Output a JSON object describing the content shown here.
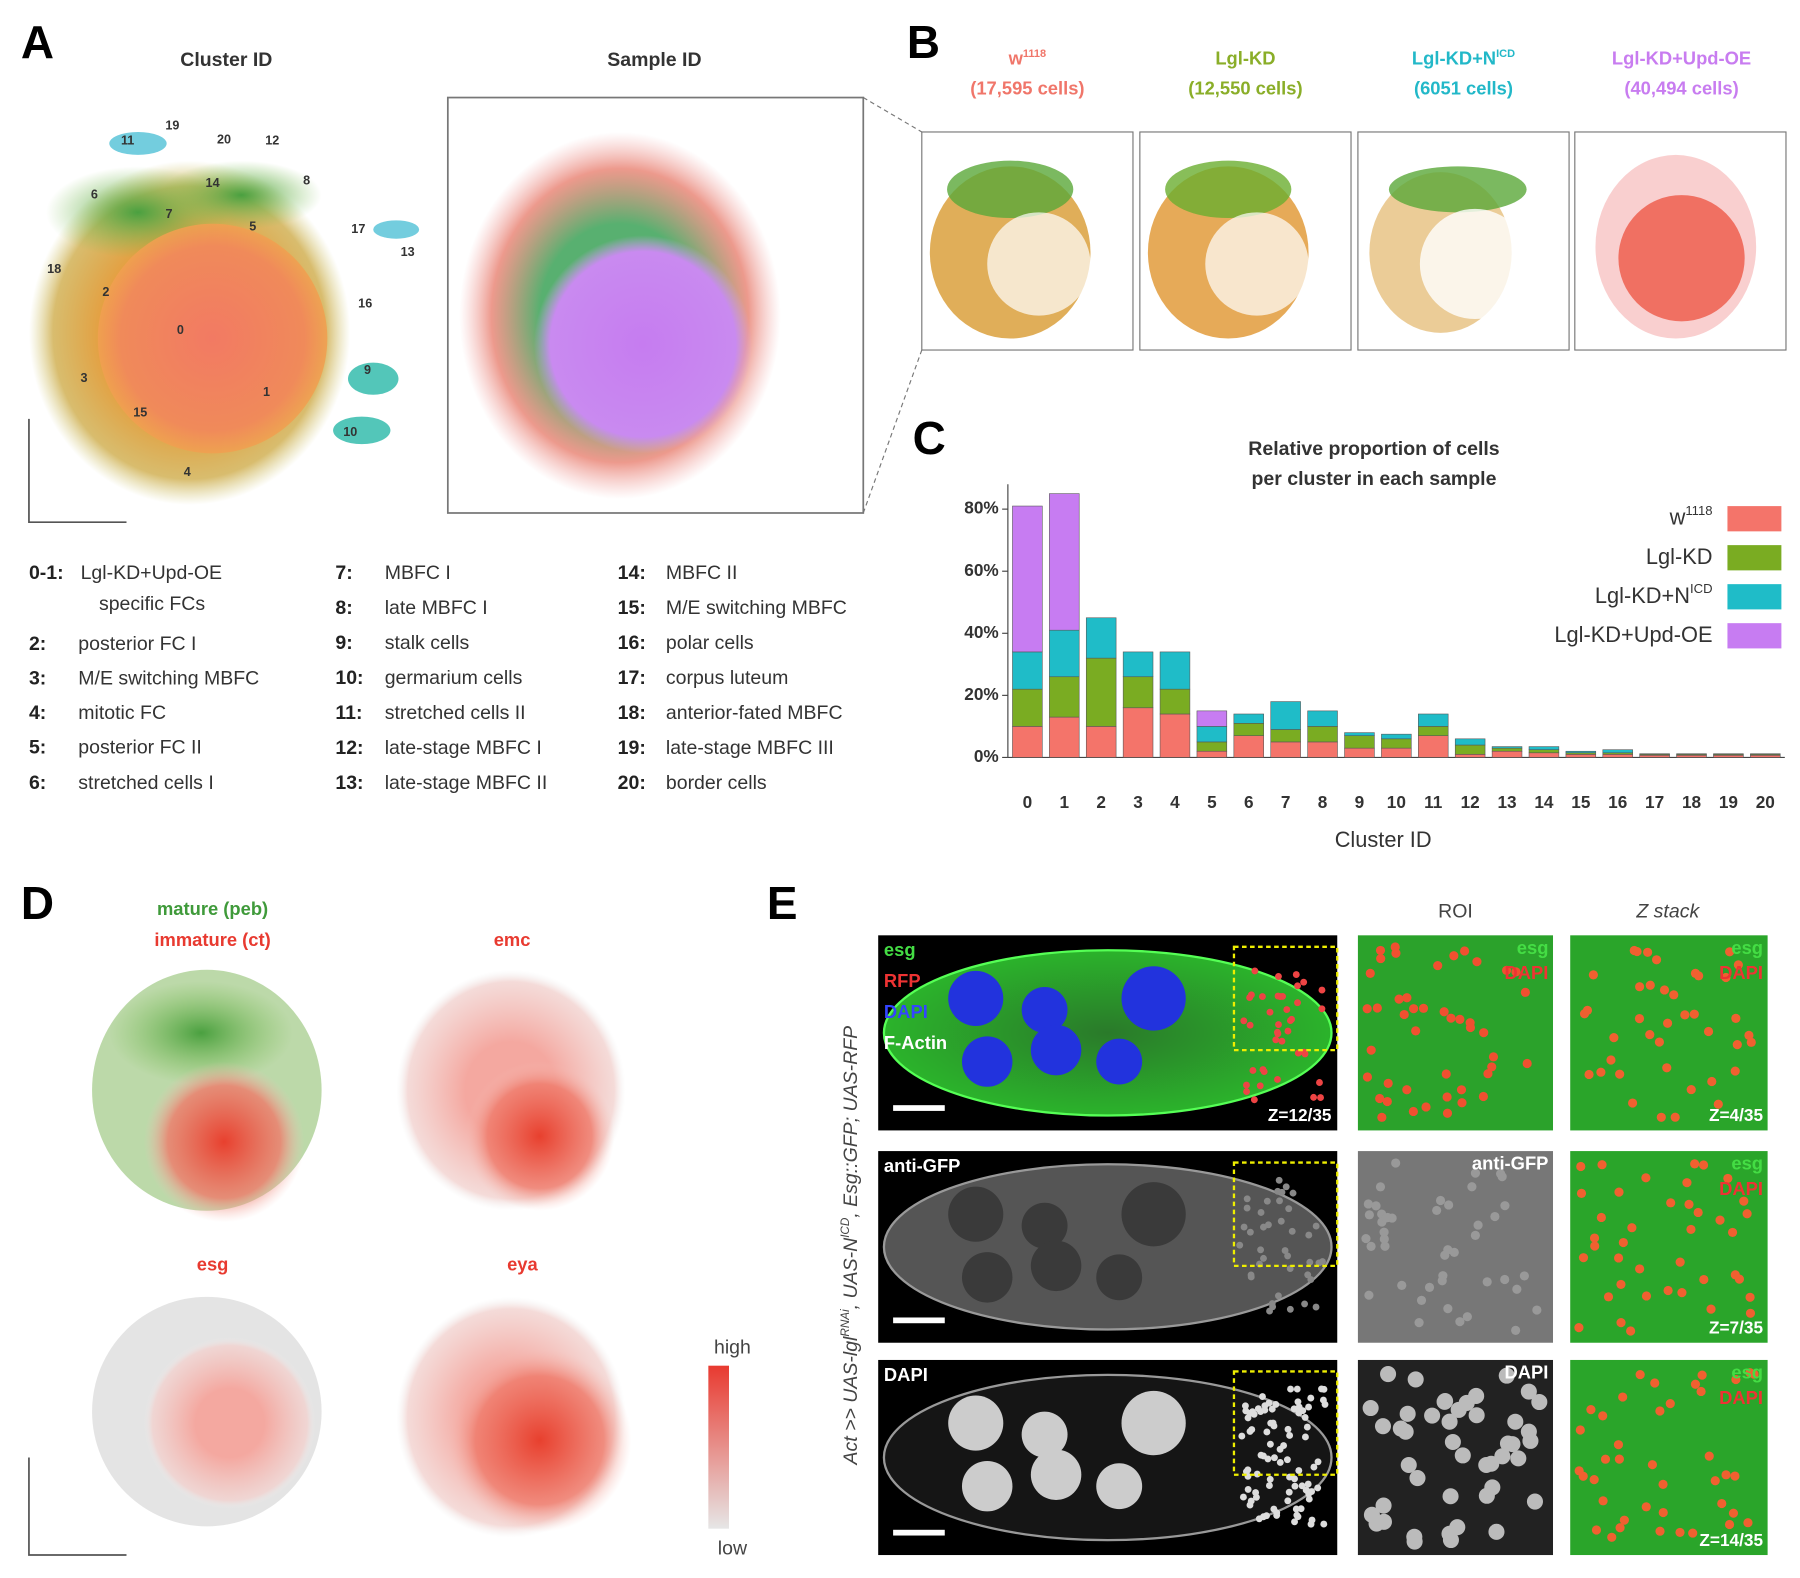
{
  "panel_a": {
    "label": "A",
    "titles": [
      "Cluster ID",
      "Sample ID"
    ],
    "umap_labels": [
      "19",
      "11",
      "20",
      "12",
      "6",
      "14",
      "8",
      "7",
      "5",
      "17",
      "13",
      "18",
      "2",
      "16",
      "0",
      "9",
      "3",
      "1",
      "15",
      "10",
      "4"
    ],
    "legend": [
      {
        "key": "0-1:",
        "lines": [
          "Lgl-KD+Upd-OE",
          "specific FCs"
        ]
      },
      {
        "key": "2:",
        "lines": [
          "posterior FC I"
        ]
      },
      {
        "key": "3:",
        "lines": [
          "M/E switching MBFC"
        ]
      },
      {
        "key": "4:",
        "lines": [
          "mitotic FC"
        ]
      },
      {
        "key": "5:",
        "lines": [
          "posterior FC II"
        ]
      },
      {
        "key": "6:",
        "lines": [
          "stretched cells I"
        ]
      },
      {
        "key": "7:",
        "lines": [
          "MBFC I"
        ]
      },
      {
        "key": "8:",
        "lines": [
          "late MBFC I"
        ]
      },
      {
        "key": "9:",
        "lines": [
          "stalk cells"
        ]
      },
      {
        "key": "10:",
        "lines": [
          "germarium cells"
        ]
      },
      {
        "key": "11:",
        "lines": [
          "stretched cells II"
        ]
      },
      {
        "key": "12:",
        "lines": [
          "late-stage MBFC I"
        ]
      },
      {
        "key": "13:",
        "lines": [
          "late-stage MBFC II"
        ]
      },
      {
        "key": "14:",
        "lines": [
          "MBFC II"
        ]
      },
      {
        "key": "15:",
        "lines": [
          "M/E switching MBFC"
        ]
      },
      {
        "key": "16:",
        "lines": [
          "polar cells"
        ]
      },
      {
        "key": "17:",
        "lines": [
          "corpus luteum"
        ]
      },
      {
        "key": "18:",
        "lines": [
          "anterior-fated MBFC"
        ]
      },
      {
        "key": "19:",
        "lines": [
          "late-stage MBFC III"
        ]
      },
      {
        "key": "20:",
        "lines": [
          "border cells"
        ]
      }
    ]
  },
  "panel_b": {
    "label": "B",
    "samples": [
      {
        "name": "w",
        "sup": "1118",
        "cells": "(17,595 cells)",
        "color": "#f0766a"
      },
      {
        "name": "Lgl-KD",
        "cells": "(12,550 cells)",
        "color": "#8aae28"
      },
      {
        "name": "Lgl-KD+N",
        "sup": "ICD",
        "cells": "(6051 cells)",
        "color": "#22b8c8"
      },
      {
        "name": "Lgl-KD+Upd-OE",
        "cells": "(40,494 cells)",
        "color": "#c87cf0"
      }
    ]
  },
  "chart_data": {
    "type": "bar",
    "stacked": true,
    "label": "C",
    "title": [
      "Relative proportion of cells",
      "per cluster in each sample"
    ],
    "x_label": "Cluster ID",
    "categories": [
      "0",
      "1",
      "2",
      "3",
      "4",
      "5",
      "6",
      "7",
      "8",
      "9",
      "10",
      "11",
      "12",
      "13",
      "14",
      "15",
      "16",
      "17",
      "18",
      "19",
      "20"
    ],
    "series": [
      {
        "name": "w",
        "sup": "1118",
        "color": "#f4746a",
        "values": [
          10,
          13,
          10,
          16,
          14,
          2,
          7,
          5,
          5,
          3,
          3,
          7,
          1,
          2,
          1.5,
          1,
          1,
          0.7,
          0.7,
          0.7,
          0.7
        ]
      },
      {
        "name": "Lgl-KD",
        "color": "#7aac22",
        "values": [
          12,
          13,
          22,
          10,
          8,
          3,
          4,
          4,
          5,
          4,
          3,
          3,
          3,
          1,
          1,
          0.5,
          0.5,
          0.3,
          0.3,
          0.3,
          0.3
        ]
      },
      {
        "name": "Lgl-KD+N",
        "sup": "ICD",
        "color": "#1fbcc8",
        "values": [
          12,
          15,
          13,
          8,
          12,
          5,
          3,
          9,
          5,
          1,
          1.5,
          4,
          2,
          0.5,
          1,
          0.5,
          1,
          0.2,
          0.2,
          0.2,
          0.2
        ]
      },
      {
        "name": "Lgl-KD+Upd-OE",
        "color": "#c77cf2",
        "values": [
          47,
          44,
          0,
          0,
          0,
          5,
          0,
          0,
          0,
          0,
          0,
          0,
          0,
          0,
          0,
          0,
          0,
          0,
          0,
          0,
          0
        ]
      }
    ],
    "ylim": [
      0,
      88
    ],
    "yticks": [
      {
        "value": 0,
        "label": "0%"
      },
      {
        "value": 20,
        "label": "20%"
      },
      {
        "value": 40,
        "label": "40%"
      },
      {
        "value": 60,
        "label": "60%"
      },
      {
        "value": 80,
        "label": "80%"
      }
    ],
    "legend": "upper right"
  },
  "panel_d": {
    "label": "D",
    "titles": [
      {
        "text": "mature (peb)",
        "color": "#3f9a3a"
      },
      {
        "text": "immature (ct)",
        "color": "#e83a30"
      },
      {
        "text": "emc",
        "color": "#e83a30"
      },
      {
        "text": "esg",
        "color": "#e83a30"
      },
      {
        "text": "eya",
        "color": "#e83a30"
      }
    ],
    "scale": [
      "high",
      "low"
    ]
  },
  "panel_e": {
    "label": "E",
    "headers": [
      "ROI",
      "Z stack"
    ],
    "genotype": [
      {
        "text": "Act >> UAS-lgl"
      },
      {
        "text": "RNAi",
        "sup": true
      },
      {
        "text": ", UAS-N"
      },
      {
        "text": "ICD",
        "sup": true
      },
      {
        "text": ", Esg::GFP; UAS-RFP"
      }
    ],
    "rows": [
      {
        "main": {
          "channels": [
            {
              "text": "esg",
              "color": "#44dd44"
            },
            {
              "text": "RFP",
              "color": "#ee3333"
            },
            {
              "text": "DAPI",
              "color": "#3344ff"
            },
            {
              "text": "F-Actin",
              "color": "#ffffff"
            }
          ],
          "z": "Z=12/35"
        },
        "roi": {
          "channels": [
            {
              "text": "esg",
              "color": "#44dd44"
            },
            {
              "text": "DAPI",
              "color": "#ee3333"
            }
          ]
        },
        "zstack": {
          "channels": [
            {
              "text": "esg",
              "color": "#44dd44"
            },
            {
              "text": "DAPI",
              "color": "#ee3333"
            }
          ],
          "z": "Z=4/35"
        }
      },
      {
        "main": {
          "channels": [
            {
              "text": "anti-GFP",
              "color": "#ffffff"
            }
          ]
        },
        "roi": {
          "channels": [
            {
              "text": "anti-GFP",
              "color": "#ffffff"
            }
          ]
        },
        "zstack": {
          "channels": [
            {
              "text": "esg",
              "color": "#44dd44"
            },
            {
              "text": "DAPI",
              "color": "#ee3333"
            }
          ],
          "z": "Z=7/35"
        }
      },
      {
        "main": {
          "channels": [
            {
              "text": "DAPI",
              "color": "#ffffff"
            }
          ]
        },
        "roi": {
          "channels": [
            {
              "text": "DAPI",
              "color": "#ffffff"
            }
          ]
        },
        "zstack": {
          "channels": [
            {
              "text": "esg",
              "color": "#44dd44"
            },
            {
              "text": "DAPI",
              "color": "#ee3333"
            }
          ],
          "z": "Z=14/35"
        }
      }
    ]
  }
}
